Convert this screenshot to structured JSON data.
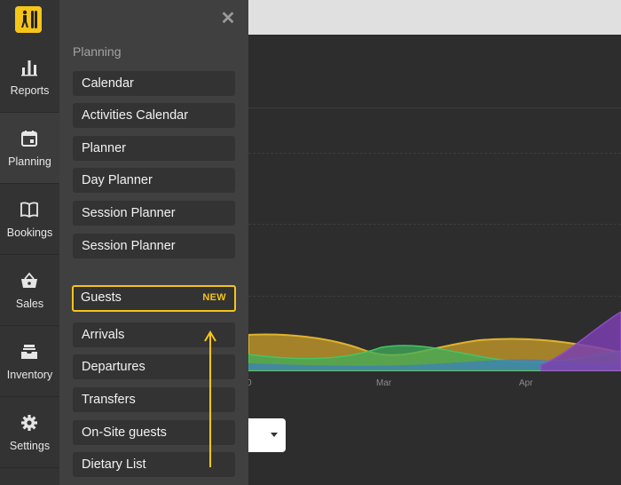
{
  "rail": {
    "items": [
      {
        "label": "Reports",
        "icon": "bar-chart-icon",
        "active": false
      },
      {
        "label": "Planning",
        "icon": "calendar-icon",
        "active": true
      },
      {
        "label": "Bookings",
        "icon": "book-icon",
        "active": false
      },
      {
        "label": "Sales",
        "icon": "basket-icon",
        "active": false
      },
      {
        "label": "Inventory",
        "icon": "inbox-icon",
        "active": false
      },
      {
        "label": "Settings",
        "icon": "gear-icon",
        "active": false
      }
    ]
  },
  "flyout": {
    "close_icon": "close-icon",
    "section_title": "Planning",
    "planning_items": [
      {
        "label": "Calendar"
      },
      {
        "label": "Activities Calendar"
      },
      {
        "label": "Planner"
      },
      {
        "label": "Day Planner"
      },
      {
        "label": "Session Planner"
      },
      {
        "label": "Session Planner"
      }
    ],
    "guest_items": [
      {
        "label": "Guests",
        "badge": "NEW",
        "highlighted": true
      },
      {
        "label": "Arrivals"
      },
      {
        "label": "Departures"
      },
      {
        "label": "Transfers"
      },
      {
        "label": "On-Site guests"
      },
      {
        "label": "Dietary List"
      }
    ]
  },
  "background": {
    "x_ticks": [
      "Mar",
      "Apr"
    ],
    "partial_tick": "0",
    "colors": {
      "accent": "#f5c518",
      "series_yellow": "#d4a82a",
      "series_green": "#3fae5a",
      "series_blue": "#3a7cc4",
      "series_purple": "#7b3fb0"
    }
  }
}
